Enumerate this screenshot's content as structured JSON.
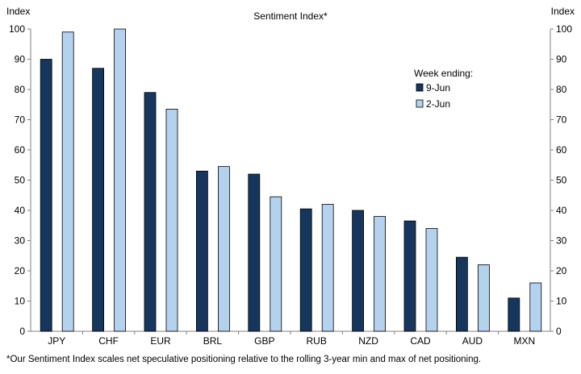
{
  "chart_data": {
    "type": "bar",
    "title": "Sentiment Index*",
    "ylabel_left": "Index",
    "ylabel_right": "Index",
    "categories": [
      "JPY",
      "CHF",
      "EUR",
      "BRL",
      "GBP",
      "RUB",
      "NZD",
      "CAD",
      "AUD",
      "MXN"
    ],
    "series": [
      {
        "name": "9-Jun",
        "color": "#17365D",
        "values": [
          90,
          87,
          79,
          53,
          52,
          40.5,
          40,
          36.5,
          24.5,
          11
        ]
      },
      {
        "name": "2-Jun",
        "color": "#B4D2EE",
        "values": [
          99,
          100,
          73.5,
          54.5,
          44.5,
          42,
          38,
          34,
          22,
          16
        ]
      }
    ],
    "ylim": [
      0,
      100
    ],
    "yticks": [
      0,
      10,
      20,
      30,
      40,
      50,
      60,
      70,
      80,
      90,
      100
    ],
    "legend_title": "Week ending:",
    "legend_position": "right",
    "grid": false,
    "footnote": "*Our Sentiment Index scales net speculative positioning relative to the rolling 3-year min and max of net positioning."
  }
}
